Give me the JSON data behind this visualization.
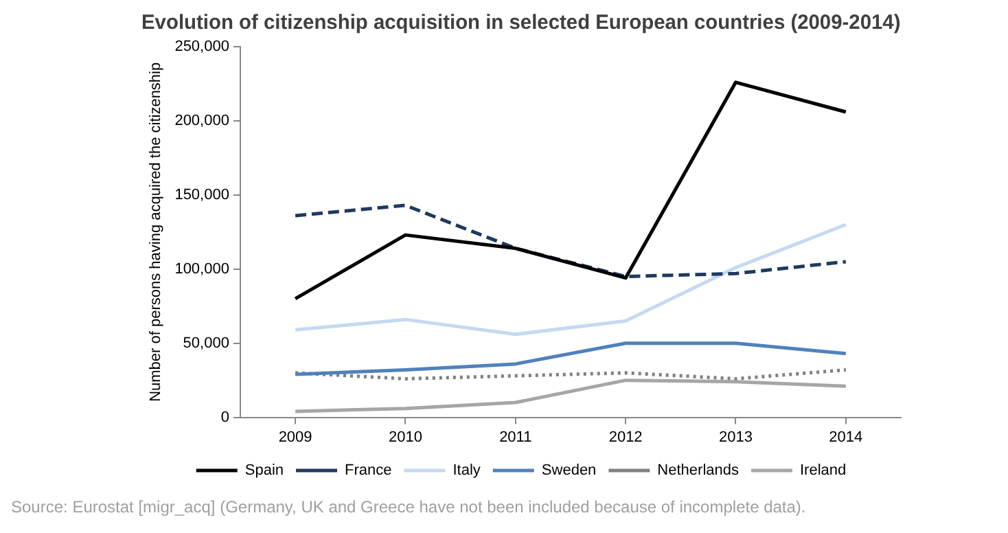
{
  "chart_data": {
    "type": "line",
    "title": "Evolution of citizenship acquisition in selected European countries (2009-2014)",
    "ylabel": "Number of persons having acquired the citizenship",
    "categories": [
      "2009",
      "2010",
      "2011",
      "2012",
      "2013",
      "2014"
    ],
    "series": [
      {
        "name": "Spain",
        "color": "#000000",
        "line_style": "solid",
        "values": [
          80000,
          123000,
          114000,
          94000,
          226000,
          206000
        ]
      },
      {
        "name": "France",
        "color": "#1f3a5f",
        "line_style": "dashed",
        "values": [
          136000,
          143000,
          114000,
          95000,
          97000,
          105000
        ]
      },
      {
        "name": "Italy",
        "color": "#c5d9f1",
        "line_style": "solid",
        "values": [
          59000,
          66000,
          56000,
          65000,
          101000,
          130000
        ]
      },
      {
        "name": "Sweden",
        "color": "#4f81bd",
        "line_style": "solid",
        "values": [
          29000,
          32000,
          36000,
          50000,
          50000,
          43000
        ]
      },
      {
        "name": "Netherlands",
        "color": "#808080",
        "line_style": "dotted",
        "values": [
          30000,
          26000,
          28000,
          30000,
          26000,
          32000
        ]
      },
      {
        "name": "Ireland",
        "color": "#a6a6a6",
        "line_style": "solid",
        "values": [
          4000,
          6000,
          10000,
          25000,
          24000,
          21000
        ]
      }
    ],
    "ylim": [
      0,
      250000
    ],
    "yticks": [
      0,
      {
        "value": 50000,
        "label": "50,000"
      },
      {
        "value": 100000,
        "label": "100,000"
      },
      {
        "value": 150000,
        "label": "150,000"
      },
      {
        "value": 200000,
        "label": "200,000"
      },
      {
        "value": 250000,
        "label": "250,000"
      }
    ],
    "grid": false,
    "legend": "bottom",
    "marker": "none",
    "annotations": [
      "Source: Eurostat [migr_acq] (Germany, UK and Greece have not been included because of incomplete data)."
    ]
  }
}
